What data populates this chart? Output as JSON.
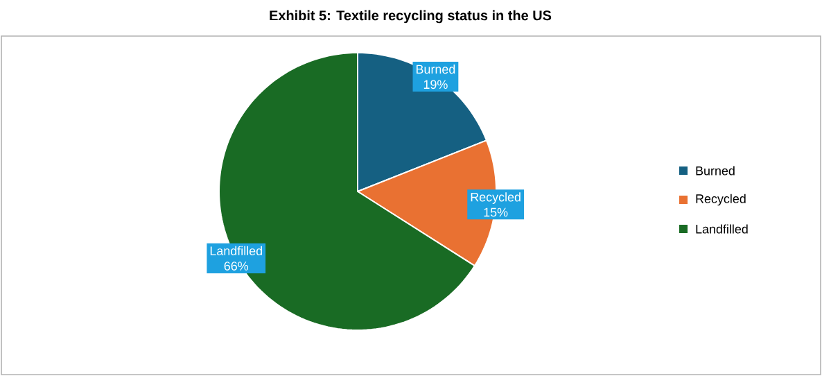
{
  "chart_data": {
    "type": "pie",
    "title": "Exhibit 5: Textile recycling status in the US",
    "categories": [
      "Burned",
      "Recycled",
      "Landfilled"
    ],
    "values": [
      19,
      15,
      66
    ],
    "value_labels": [
      "19%",
      "15%",
      "66%"
    ],
    "colors": [
      "#156082",
      "#e97132",
      "#196b24"
    ],
    "legend": "right"
  }
}
